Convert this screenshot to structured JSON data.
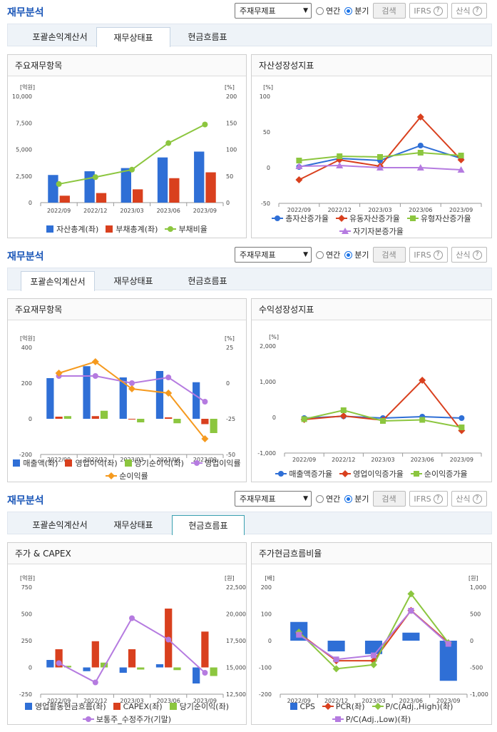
{
  "sections": [
    {
      "title": "재무분석",
      "select_value": "주재무제표",
      "radio_annual": "연간",
      "radio_quarter": "분기",
      "search_label": "검색",
      "ifrs_label": "IFRS",
      "formula_label": "산식",
      "tabs": [
        "포괄손익계산서",
        "재무상태표",
        "현금흐름표"
      ],
      "active_tab": 1
    },
    {
      "title": "재무분석",
      "select_value": "주재무제표",
      "radio_annual": "연간",
      "radio_quarter": "분기",
      "search_label": "검색",
      "ifrs_label": "IFRS",
      "formula_label": "산식",
      "tabs": [
        "포괄손익계산서",
        "재무상태표",
        "현금흐름표"
      ],
      "active_tab": 0
    },
    {
      "title": "재무분석",
      "select_value": "주재무제표",
      "radio_annual": "연간",
      "radio_quarter": "분기",
      "search_label": "검색",
      "ifrs_label": "IFRS",
      "formula_label": "산식",
      "tabs": [
        "포괄손익계산서",
        "재무상태표",
        "현금흐름표"
      ],
      "active_tab": 2
    }
  ],
  "chart_data": [
    {
      "id": "c1",
      "panel_title": "주요재무항목",
      "type": "bar+line",
      "categories": [
        "2022/09",
        "2022/12",
        "2023/03",
        "2023/06",
        "2023/09"
      ],
      "left_unit": "[억원]",
      "right_unit": "[%]",
      "left_ticks": [
        "10,000",
        "7,500",
        "5,000",
        "2,500",
        "0"
      ],
      "right_ticks": [
        "200",
        "150",
        "100",
        "50",
        "0"
      ],
      "ylim": [
        0,
        10000
      ],
      "y2lim": [
        0,
        200
      ],
      "bars": [
        {
          "name": "자산총계(좌)",
          "color": "#2f6fd6",
          "values": [
            2600,
            2950,
            3250,
            4250,
            4800
          ]
        },
        {
          "name": "부채총계(좌)",
          "color": "#d9401e",
          "values": [
            650,
            900,
            1250,
            2300,
            2850
          ]
        }
      ],
      "lines": [
        {
          "name": "부채비율",
          "color": "#8cc63f",
          "marker": "circle",
          "axis": "right",
          "values": [
            35,
            48,
            62,
            112,
            147
          ]
        }
      ]
    },
    {
      "id": "c2",
      "panel_title": "자산성장성지표",
      "type": "line",
      "categories": [
        "2022/09",
        "2022/12",
        "2023/03",
        "2023/06",
        "2023/09"
      ],
      "left_unit": "[%]",
      "left_ticks": [
        "100",
        "50",
        "0",
        "-50"
      ],
      "ylim": [
        -50,
        100
      ],
      "lines": [
        {
          "name": "총자산증가율",
          "color": "#2f6fd6",
          "marker": "circle",
          "values": [
            1,
            13,
            10,
            31,
            13
          ]
        },
        {
          "name": "유동자산증가율",
          "color": "#d9401e",
          "marker": "diamond",
          "values": [
            -17,
            11,
            2,
            71,
            11
          ]
        },
        {
          "name": "유형자산증가율",
          "color": "#8cc63f",
          "marker": "square",
          "values": [
            10,
            16,
            15,
            21,
            17
          ]
        },
        {
          "name": "자기자본증가율",
          "color": "#b57be0",
          "marker": "triangle",
          "values": [
            2,
            3,
            0,
            0,
            -3
          ]
        }
      ]
    },
    {
      "id": "c3",
      "panel_title": "주요재무항목",
      "type": "bar+line",
      "categories": [
        "2022/09",
        "2022/12",
        "2023/03",
        "2023/06",
        "2023/09"
      ],
      "left_unit": "[억원]",
      "right_unit": "[%]",
      "left_ticks": [
        "400",
        "200",
        "0",
        "-200"
      ],
      "right_ticks": [
        "25",
        "0",
        "-25",
        "-50"
      ],
      "ylim": [
        -200,
        400
      ],
      "y2lim": [
        -50,
        25
      ],
      "bars": [
        {
          "name": "매출액(좌)",
          "color": "#2f6fd6",
          "values": [
            228,
            295,
            232,
            268,
            205
          ]
        },
        {
          "name": "영업이익(좌)",
          "color": "#d9401e",
          "values": [
            12,
            15,
            -2,
            8,
            -30
          ]
        },
        {
          "name": "당기순이익(좌)",
          "color": "#8cc63f",
          "values": [
            15,
            45,
            -20,
            -25,
            -80
          ]
        }
      ],
      "lines": [
        {
          "name": "영업이익률",
          "color": "#b57be0",
          "marker": "circle",
          "axis": "right",
          "values": [
            5,
            5,
            0,
            4,
            -13
          ]
        },
        {
          "name": "순이익률",
          "color": "#f59a1f",
          "marker": "diamond",
          "axis": "right",
          "values": [
            7,
            15,
            -4,
            -7,
            -39
          ]
        }
      ]
    },
    {
      "id": "c4",
      "panel_title": "수익성장성지표",
      "type": "line",
      "categories": [
        "2022/09",
        "2022/12",
        "2023/03",
        "2023/06",
        "2023/09"
      ],
      "left_unit": "[%]",
      "left_ticks": [
        "2,000",
        "1,000",
        "0",
        "-1,000"
      ],
      "ylim": [
        -1000,
        2000
      ],
      "lines": [
        {
          "name": "매출액증가율",
          "color": "#2f6fd6",
          "marker": "circle",
          "values": [
            -20,
            30,
            -20,
            20,
            -20
          ]
        },
        {
          "name": "영업이익증가율",
          "color": "#d9401e",
          "marker": "diamond",
          "values": [
            -60,
            40,
            -80,
            1040,
            -370
          ]
        },
        {
          "name": "순이익증가율",
          "color": "#8cc63f",
          "marker": "square",
          "values": [
            -50,
            200,
            -100,
            -70,
            -280
          ]
        }
      ]
    },
    {
      "id": "c5",
      "panel_title": "주가 & CAPEX",
      "type": "bar+line",
      "categories": [
        "2022/09",
        "2022/12",
        "2023/03",
        "2023/06",
        "2023/09"
      ],
      "left_unit": "[억원]",
      "right_unit": "[원]",
      "left_ticks": [
        "750",
        "500",
        "250",
        "0",
        "-250"
      ],
      "right_ticks": [
        "22,500",
        "20,000",
        "17,500",
        "15,000",
        "12,500"
      ],
      "ylim": [
        -250,
        750
      ],
      "y2lim": [
        12500,
        22500
      ],
      "bars": [
        {
          "name": "영업활동현금흐름(좌)",
          "color": "#2f6fd6",
          "values": [
            70,
            -35,
            -50,
            30,
            -150
          ]
        },
        {
          "name": "CAPEX(좌)",
          "color": "#d9401e",
          "values": [
            170,
            245,
            170,
            550,
            335
          ]
        },
        {
          "name": "당기순이익(좌)",
          "color": "#8cc63f",
          "values": [
            15,
            45,
            -20,
            -25,
            -80
          ]
        }
      ],
      "lines": [
        {
          "name": "보통주_수정주가(기말)",
          "color": "#b57be0",
          "marker": "circle",
          "axis": "right",
          "values": [
            15400,
            13600,
            19600,
            17600,
            14500
          ]
        }
      ]
    },
    {
      "id": "c6",
      "panel_title": "주가현금흐름비율",
      "type": "bar+line",
      "categories": [
        "2022/09",
        "2022/12",
        "2023/03",
        "2023/06",
        "2023/09"
      ],
      "left_unit": "[배]",
      "right_unit": "[원]",
      "left_ticks": [
        "200",
        "100",
        "0",
        "-100",
        "-200"
      ],
      "right_ticks": [
        "1,000",
        "500",
        "0",
        "-500",
        "-1,000"
      ],
      "ylim": [
        -200,
        200
      ],
      "y2lim": [
        -1000,
        1000
      ],
      "bars": [
        {
          "name": "CPS",
          "color": "#2f6fd6",
          "axis": "right",
          "values": [
            350,
            -200,
            -250,
            150,
            -750
          ]
        }
      ],
      "lines": [
        {
          "name": "PCR(좌)",
          "color": "#d9401e",
          "marker": "diamond",
          "values": [
            28,
            -75,
            -75,
            113,
            -8
          ]
        },
        {
          "name": "P/C(Adj.,High)(좌)",
          "color": "#8cc63f",
          "marker": "diamond",
          "values": [
            32,
            -105,
            -90,
            175,
            -8
          ]
        },
        {
          "name": "P/C(Adj.,Low)(좌)",
          "color": "#b57be0",
          "marker": "square",
          "values": [
            22,
            -70,
            -55,
            112,
            -12
          ]
        }
      ]
    }
  ]
}
